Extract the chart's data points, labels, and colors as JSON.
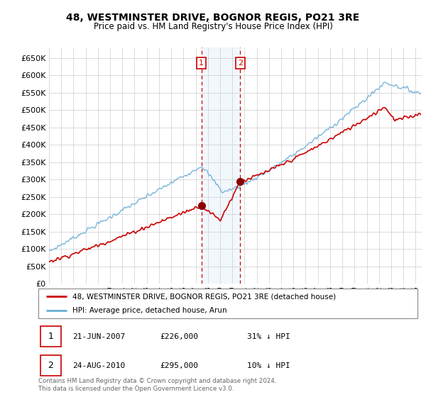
{
  "title1": "48, WESTMINSTER DRIVE, BOGNOR REGIS, PO21 3RE",
  "title2": "Price paid vs. HM Land Registry's House Price Index (HPI)",
  "ylim": [
    0,
    680000
  ],
  "yticks": [
    0,
    50000,
    100000,
    150000,
    200000,
    250000,
    300000,
    350000,
    400000,
    450000,
    500000,
    550000,
    600000,
    650000
  ],
  "xlim_start": 1995.0,
  "xlim_end": 2025.5,
  "sale1_date": 2007.47,
  "sale1_price": 226000,
  "sale1_label": "1",
  "sale2_date": 2010.65,
  "sale2_price": 295000,
  "sale2_label": "2",
  "hpi_color": "#6aaed6",
  "price_color": "#cc0000",
  "legend_label1": "48, WESTMINSTER DRIVE, BOGNOR REGIS, PO21 3RE (detached house)",
  "legend_label2": "HPI: Average price, detached house, Arun",
  "table_row1": [
    "1",
    "21-JUN-2007",
    "£226,000",
    "31% ↓ HPI"
  ],
  "table_row2": [
    "2",
    "24-AUG-2010",
    "£295,000",
    "10% ↓ HPI"
  ],
  "footer": "Contains HM Land Registry data © Crown copyright and database right 2024.\nThis data is licensed under the Open Government Licence v3.0.",
  "grid_color": "#cccccc"
}
